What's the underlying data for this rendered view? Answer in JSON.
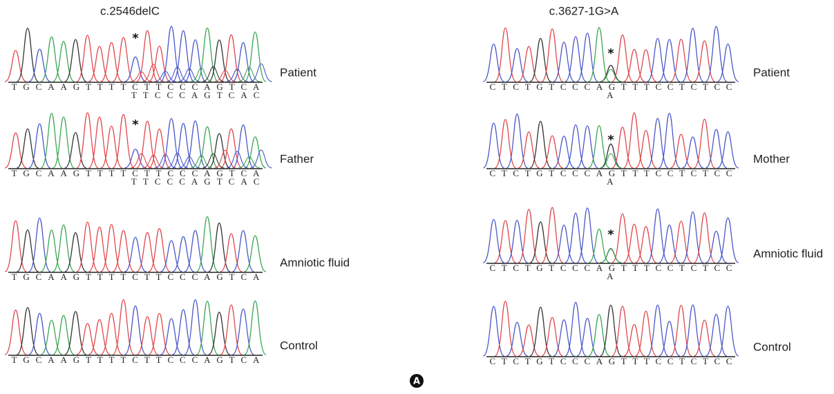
{
  "panels": [
    {
      "title": "c.2546delC",
      "rows": [
        {
          "label": "Patient",
          "sequence": "TGCAAGTTTTCTTCCCAGTCA",
          "alt_sequence": "TTCCCAGTCAC",
          "marker": "*"
        },
        {
          "label": "Father",
          "sequence": "TGCAAGTTTTCTTCCCAGTCA",
          "alt_sequence": "TTCCCAGTCAC",
          "marker": "*"
        },
        {
          "label": "Amniotic fluid",
          "sequence": "TGCAAGTTTTCTTCCCAGTCA"
        },
        {
          "label": "Control",
          "sequence": "TGCAAGTTTTCTTCCCAGTCA"
        }
      ]
    },
    {
      "title": "c.3627-1G>A",
      "rows": [
        {
          "label": "Patient",
          "sequence": "CTCTGTCCCAGTTTCCTCTCC",
          "alt_sequence": "A",
          "marker": "*"
        },
        {
          "label": "Mother",
          "sequence": "CTCTGTCCCAGTTTCCTCTCC",
          "alt_sequence": "A",
          "marker": "*"
        },
        {
          "label": "Amniotic fluid",
          "sequence": "CTCTGTCCCAGTTTCCTCTCC",
          "alt_sequence": "A",
          "marker": "*"
        },
        {
          "label": "Control",
          "sequence": "CTCTGTCCCAGTTTCCTCTCC"
        }
      ]
    }
  ],
  "figure_label": "A"
}
